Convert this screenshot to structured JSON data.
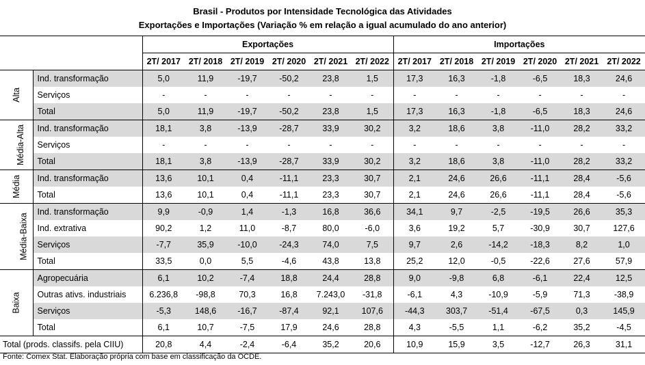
{
  "title": "Brasil - Produtos por Intensidade Tecnológica das Atividades",
  "subtitle": "Exportações e Importações (Variação % em relação a igual acumulado do ano anterior)",
  "col_groups": [
    "Exportações",
    "Importações"
  ],
  "periods": [
    "2T/ 2017",
    "2T/ 2018",
    "2T/ 2019",
    "2T/ 2020",
    "2T/ 2021",
    "2T/ 2022",
    "2T/ 2017",
    "2T/ 2018",
    "2T/ 2019",
    "2T/ 2020",
    "2T/ 2021",
    "2T/ 2022"
  ],
  "groups": [
    {
      "name": "Alta",
      "rows": [
        {
          "label": "Ind. transformação",
          "values": [
            "5,0",
            "11,9",
            "-19,7",
            "-50,2",
            "23,8",
            "1,5",
            "17,3",
            "16,3",
            "-1,8",
            "-6,5",
            "18,3",
            "24,6"
          ]
        },
        {
          "label": "Serviços",
          "values": [
            "-",
            "-",
            "-",
            "-",
            "-",
            "-",
            "-",
            "-",
            "-",
            "-",
            "-",
            "-"
          ]
        },
        {
          "label": "Total",
          "values": [
            "5,0",
            "11,9",
            "-19,7",
            "-50,2",
            "23,8",
            "1,5",
            "17,3",
            "16,3",
            "-1,8",
            "-6,5",
            "18,3",
            "24,6"
          ]
        }
      ]
    },
    {
      "name": "Média-Alta",
      "rows": [
        {
          "label": "Ind. transformação",
          "values": [
            "18,1",
            "3,8",
            "-13,9",
            "-28,7",
            "33,9",
            "30,2",
            "3,2",
            "18,6",
            "3,8",
            "-11,0",
            "28,2",
            "33,2"
          ]
        },
        {
          "label": "Serviços",
          "values": [
            "-",
            "-",
            "-",
            "-",
            "-",
            "-",
            "-",
            "-",
            "-",
            "-",
            "-",
            "-"
          ]
        },
        {
          "label": "Total",
          "values": [
            "18,1",
            "3,8",
            "-13,9",
            "-28,7",
            "33,9",
            "30,2",
            "3,2",
            "18,6",
            "3,8",
            "-11,0",
            "28,2",
            "33,2"
          ]
        }
      ]
    },
    {
      "name": "Média",
      "rows": [
        {
          "label": "Ind. transformação",
          "values": [
            "13,6",
            "10,1",
            "0,4",
            "-11,1",
            "23,3",
            "30,7",
            "2,1",
            "24,6",
            "26,6",
            "-11,1",
            "28,4",
            "-5,6"
          ]
        },
        {
          "label": "Total",
          "values": [
            "13,6",
            "10,1",
            "0,4",
            "-11,1",
            "23,3",
            "30,7",
            "2,1",
            "24,6",
            "26,6",
            "-11,1",
            "28,4",
            "-5,6"
          ]
        }
      ]
    },
    {
      "name": "Média-Baixa",
      "rows": [
        {
          "label": "Ind. transformação",
          "values": [
            "9,9",
            "-0,9",
            "1,4",
            "-1,3",
            "16,8",
            "36,6",
            "34,1",
            "9,7",
            "-2,5",
            "-19,5",
            "26,6",
            "35,3"
          ]
        },
        {
          "label": "Ind. extrativa",
          "values": [
            "90,2",
            "1,2",
            "11,0",
            "-8,7",
            "80,0",
            "-6,0",
            "3,6",
            "19,2",
            "5,7",
            "-30,9",
            "30,7",
            "127,6"
          ]
        },
        {
          "label": "Serviços",
          "values": [
            "-7,7",
            "35,9",
            "-10,0",
            "-24,3",
            "74,0",
            "7,5",
            "9,7",
            "2,6",
            "-14,2",
            "-18,3",
            "8,2",
            "1,0"
          ]
        },
        {
          "label": "Total",
          "values": [
            "33,5",
            "0,0",
            "5,5",
            "-4,6",
            "43,8",
            "13,8",
            "25,2",
            "12,0",
            "-0,5",
            "-22,6",
            "27,6",
            "57,9"
          ]
        }
      ]
    },
    {
      "name": "Baixa",
      "rows": [
        {
          "label": "Agropecuária",
          "values": [
            "6,1",
            "10,2",
            "-7,4",
            "18,8",
            "24,4",
            "28,8",
            "9,0",
            "-9,8",
            "6,8",
            "-6,1",
            "22,4",
            "12,5"
          ]
        },
        {
          "label": "Outras ativs. industriais",
          "values": [
            "6.236,8",
            "-98,8",
            "70,3",
            "16,8",
            "7.243,0",
            "-31,8",
            "-6,1",
            "4,3",
            "-10,9",
            "-5,9",
            "71,3",
            "-38,9"
          ]
        },
        {
          "label": "Serviços",
          "values": [
            "-5,3",
            "148,6",
            "-16,7",
            "-87,4",
            "92,1",
            "107,6",
            "-44,3",
            "303,7",
            "-51,4",
            "-67,5",
            "0,3",
            "145,9"
          ]
        },
        {
          "label": "Total",
          "values": [
            "6,1",
            "10,7",
            "-7,5",
            "17,9",
            "24,6",
            "28,8",
            "4,3",
            "-5,5",
            "1,1",
            "-6,2",
            "35,2",
            "-4,5"
          ]
        }
      ]
    }
  ],
  "grand_total": {
    "label": "Total (prods. classifs. pela CIIU)",
    "values": [
      "20,8",
      "4,4",
      "-2,4",
      "-6,4",
      "35,2",
      "20,6",
      "10,9",
      "15,9",
      "3,5",
      "-12,7",
      "26,3",
      "31,1"
    ]
  },
  "footer": "Fonte: Comex Stat. Elaboração própria com base em classificação da OCDE."
}
